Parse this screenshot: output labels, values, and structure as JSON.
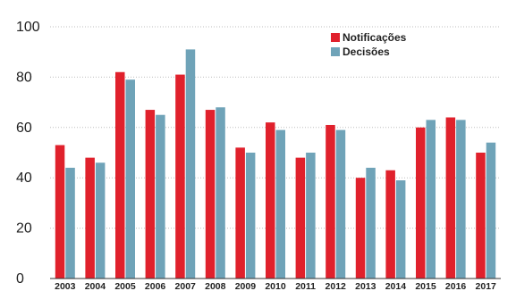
{
  "chart_data": {
    "type": "bar",
    "title": "",
    "xlabel": "",
    "ylabel": "",
    "ylim": [
      0,
      100
    ],
    "yticks": [
      0,
      20,
      40,
      60,
      80,
      100
    ],
    "grid": true,
    "legend_position": "top-right",
    "categories": [
      "2003",
      "2004",
      "2005",
      "2006",
      "2007",
      "2008",
      "2009",
      "2010",
      "2011",
      "2012",
      "2013",
      "2014",
      "2015",
      "2016",
      "2017"
    ],
    "series": [
      {
        "name": "Notificações",
        "color": "#e0212c",
        "values": [
          53,
          48,
          82,
          67,
          81,
          67,
          52,
          62,
          48,
          61,
          40,
          43,
          60,
          64,
          50
        ]
      },
      {
        "name": "Decisões",
        "color": "#6fa3b8",
        "values": [
          44,
          46,
          79,
          65,
          91,
          68,
          50,
          59,
          50,
          59,
          44,
          39,
          63,
          63,
          54
        ]
      }
    ]
  }
}
